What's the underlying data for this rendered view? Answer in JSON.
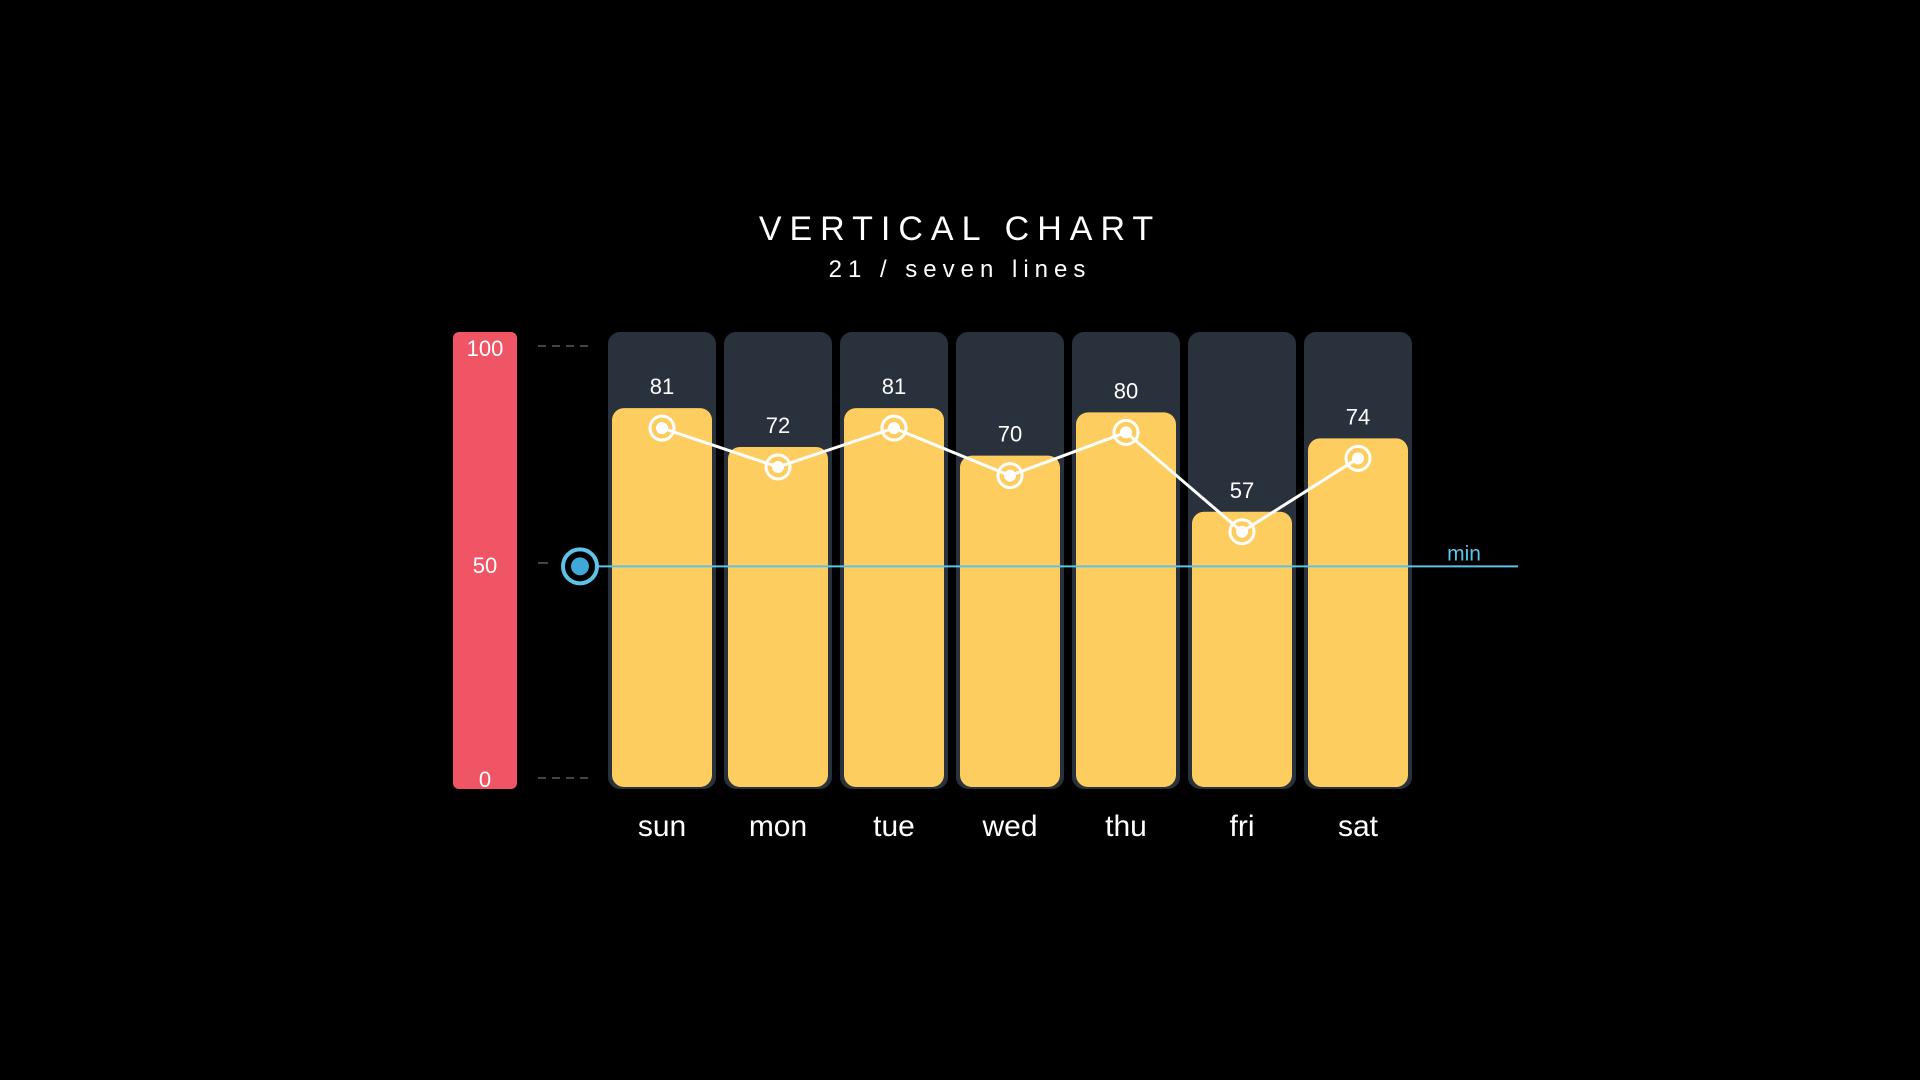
{
  "chart_data": {
    "type": "bar",
    "title": "VERTICAL CHART",
    "subtitle": "21 / seven lines",
    "categories": [
      "sun",
      "mon",
      "tue",
      "wed",
      "thu",
      "fri",
      "sat"
    ],
    "values": [
      81,
      72,
      81,
      70,
      80,
      57,
      74
    ],
    "ylim": [
      0,
      100
    ],
    "yticks": [
      "100",
      "50",
      "0"
    ],
    "min_line": {
      "value": 49,
      "label": "min"
    },
    "overlay": "line",
    "grid": false,
    "legend": "none",
    "colors": {
      "bar": "#fecd5f",
      "bar_track": "#29313d",
      "scale_bar": "#f05566",
      "line": "#ffffff",
      "min_line": "#5bc3e8",
      "min_knob": "#3fa8d6",
      "text": "#ffffff"
    }
  }
}
